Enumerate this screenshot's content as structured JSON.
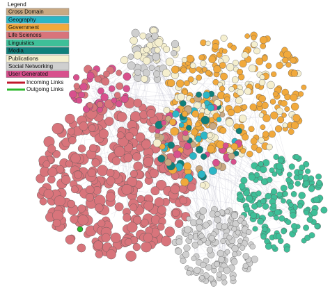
{
  "legend": {
    "title": "Legend",
    "items": [
      {
        "label": "Cross Domain",
        "color": "#c9a983"
      },
      {
        "label": "Geography",
        "color": "#2cb6c6"
      },
      {
        "label": "Government",
        "color": "#f1a93c"
      },
      {
        "label": "Life Sciences",
        "color": "#d8747b"
      },
      {
        "label": "Linguistics",
        "color": "#3ebf98"
      },
      {
        "label": "Media",
        "color": "#10807b"
      },
      {
        "label": "Publications",
        "color": "#f5efcf"
      },
      {
        "label": "Social Networking",
        "color": "#cfcfcf"
      },
      {
        "label": "User Generated",
        "color": "#d8508d"
      }
    ],
    "links": [
      {
        "label": "Incoming Links",
        "color": "#c0182c"
      },
      {
        "label": "Outgoing Links",
        "color": "#2cb82c"
      }
    ]
  }
}
